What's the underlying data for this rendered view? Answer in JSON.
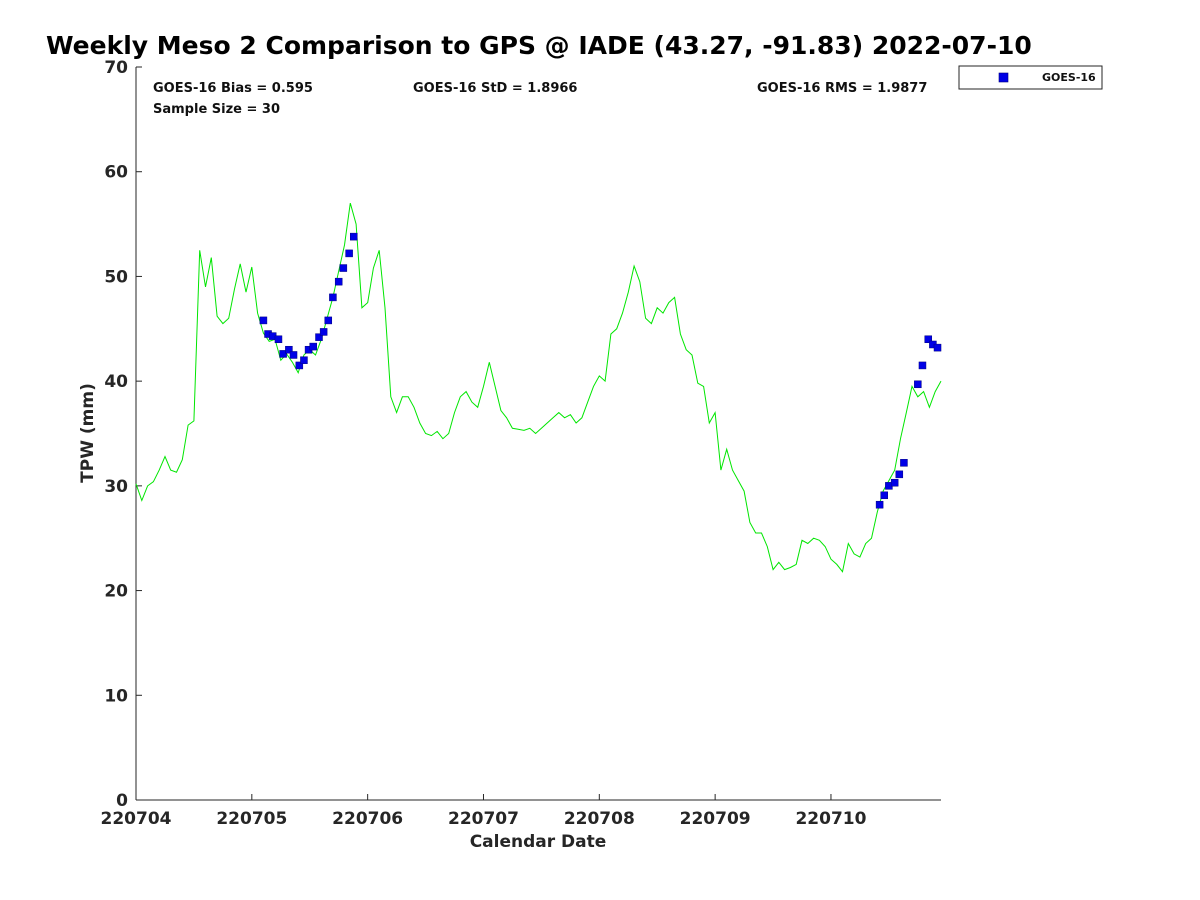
{
  "chart_data": {
    "type": "line",
    "title": "Weekly Meso 2 Comparison to GPS @ IADE (43.27, -91.83) 2022-07-10",
    "xlabel": "Calendar Date",
    "ylabel": "TPW (mm)",
    "xlim": [
      220704.0,
      220710.95
    ],
    "ylim": [
      0,
      70
    ],
    "xticks": [
      220704,
      220705,
      220706,
      220707,
      220708,
      220709,
      220710
    ],
    "xtick_labels": [
      "220704",
      "220705",
      "220706",
      "220707",
      "220708",
      "220709",
      "220710"
    ],
    "yticks": [
      0,
      10,
      20,
      30,
      40,
      50,
      60,
      70
    ],
    "ytick_labels": [
      "0",
      "10",
      "20",
      "30",
      "40",
      "50",
      "60",
      "70"
    ],
    "grid": false,
    "legend": {
      "position": "top-right-outside",
      "entries": [
        "GOES-16"
      ]
    },
    "stats": {
      "bias": "GOES-16 Bias = 0.595",
      "std": "GOES-16 StD = 1.8966",
      "rms": "GOES-16 RMS = 1.9877",
      "sample": "Sample Size = 30"
    },
    "colors": {
      "gps_line": "#00e600",
      "goes_marker": "#0000e6",
      "axis": "#262626"
    },
    "series": [
      {
        "style": "line",
        "color": "#00e600",
        "x": [
          220704.0,
          220704.05,
          220704.1,
          220704.15,
          220704.2,
          220704.25,
          220704.3,
          220704.35,
          220704.4,
          220704.45,
          220704.5,
          220704.55,
          220704.6,
          220704.65,
          220704.7,
          220704.75,
          220704.8,
          220704.85,
          220704.9,
          220704.95,
          220705.0,
          220705.05,
          220705.1,
          220705.15,
          220705.2,
          220705.25,
          220705.3,
          220705.35,
          220705.4,
          220705.45,
          220705.5,
          220705.55,
          220705.6,
          220705.65,
          220705.7,
          220705.75,
          220705.8,
          220705.85,
          220705.9,
          220705.95,
          220706.0,
          220706.05,
          220706.1,
          220706.15,
          220706.2,
          220706.25,
          220706.3,
          220706.35,
          220706.4,
          220706.45,
          220706.5,
          220706.55,
          220706.6,
          220706.65,
          220706.7,
          220706.75,
          220706.8,
          220706.85,
          220706.9,
          220706.95,
          220707.0,
          220707.05,
          220707.1,
          220707.15,
          220707.2,
          220707.25,
          220707.3,
          220707.35,
          220707.4,
          220707.45,
          220707.5,
          220707.55,
          220707.6,
          220707.65,
          220707.7,
          220707.75,
          220707.8,
          220707.85,
          220707.9,
          220707.95,
          220708.0,
          220708.05,
          220708.1,
          220708.15,
          220708.2,
          220708.25,
          220708.3,
          220708.35,
          220708.4,
          220708.45,
          220708.5,
          220708.55,
          220708.6,
          220708.65,
          220708.7,
          220708.75,
          220708.8,
          220708.85,
          220708.9,
          220708.95,
          220709.0,
          220709.05,
          220709.1,
          220709.15,
          220709.2,
          220709.25,
          220709.3,
          220709.35,
          220709.4,
          220709.45,
          220709.5,
          220709.55,
          220709.6,
          220709.65,
          220709.7,
          220709.75,
          220709.8,
          220709.85,
          220709.9,
          220709.95,
          220710.0,
          220710.05,
          220710.1,
          220710.15,
          220710.2,
          220710.25,
          220710.3,
          220710.35,
          220710.4,
          220710.45,
          220710.5,
          220710.55,
          220710.6,
          220710.65,
          220710.7,
          220710.75,
          220710.8,
          220710.85,
          220710.9,
          220710.95
        ],
        "y": [
          30.2,
          28.6,
          30.0,
          30.4,
          31.5,
          32.8,
          31.5,
          31.3,
          32.5,
          35.8,
          36.2,
          52.5,
          49.0,
          51.8,
          46.2,
          45.5,
          46.0,
          48.8,
          51.2,
          48.5,
          50.9,
          46.5,
          44.6,
          43.8,
          44.0,
          42.0,
          42.6,
          41.8,
          40.8,
          42.5,
          43.0,
          42.5,
          44.0,
          46.0,
          48.0,
          50.5,
          53.0,
          57.0,
          55.0,
          47.0,
          47.5,
          50.8,
          52.5,
          47.0,
          38.5,
          37.0,
          38.5,
          38.5,
          37.5,
          36.0,
          35.0,
          34.8,
          35.2,
          34.5,
          35.0,
          37.0,
          38.5,
          39.0,
          38.0,
          37.5,
          39.5,
          41.8,
          39.5,
          37.2,
          36.5,
          35.5,
          35.4,
          35.3,
          35.5,
          35.0,
          35.5,
          36.0,
          36.5,
          37.0,
          36.5,
          36.8,
          36.0,
          36.5,
          38.0,
          39.5,
          40.5,
          40.0,
          44.5,
          45.0,
          46.5,
          48.5,
          51.0,
          49.5,
          46.0,
          45.5,
          47.0,
          46.5,
          47.5,
          48.0,
          44.5,
          43.0,
          42.5,
          39.8,
          39.5,
          36.0,
          37.0,
          31.5,
          33.5,
          31.5,
          30.5,
          29.5,
          26.5,
          25.5,
          25.5,
          24.2,
          22.0,
          22.7,
          22.0,
          22.2,
          22.5,
          24.8,
          24.5,
          25.0,
          24.8,
          24.2,
          23.0,
          22.5,
          21.8,
          24.5,
          23.5,
          23.2,
          24.5,
          25.0,
          27.5,
          29.5,
          30.5,
          31.5,
          34.5,
          37.0,
          39.5,
          38.5,
          39.0,
          37.5,
          39.0,
          40.0
        ]
      },
      {
        "name": "GOES-16",
        "style": "markers",
        "color": "#0000e6",
        "x": [
          220705.1,
          220705.14,
          220705.18,
          220705.23,
          220705.27,
          220705.32,
          220705.36,
          220705.41,
          220705.45,
          220705.49,
          220705.53,
          220705.58,
          220705.62,
          220705.66,
          220705.7,
          220705.75,
          220705.79,
          220705.84,
          220705.88,
          220710.42,
          220710.46,
          220710.5,
          220710.55,
          220710.59,
          220710.63,
          220710.75,
          220710.79,
          220710.84,
          220710.88,
          220710.92
        ],
        "y": [
          45.8,
          44.5,
          44.3,
          44.0,
          42.6,
          43.0,
          42.5,
          41.5,
          42.0,
          43.0,
          43.3,
          44.2,
          44.7,
          45.8,
          48.0,
          49.5,
          50.8,
          52.2,
          53.8,
          28.2,
          29.1,
          30.0,
          30.3,
          31.1,
          32.2,
          39.7,
          41.5,
          44.0,
          43.5,
          43.2
        ]
      }
    ]
  }
}
